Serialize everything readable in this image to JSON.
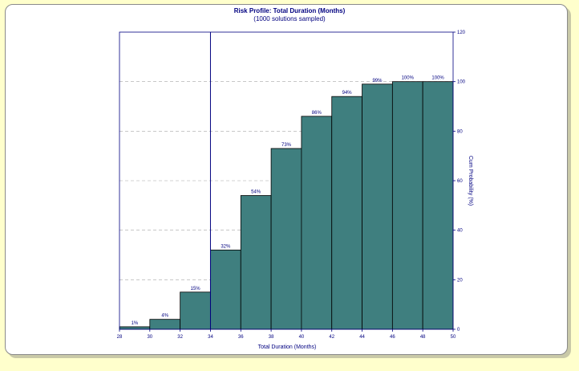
{
  "chart_data": {
    "type": "bar",
    "title": "Risk Profile:  Total Duration (Months)",
    "subtitle": "(1000 solutions sampled)",
    "xlabel": "Total Duration (Months)",
    "ylabel": "Cum Probability (%)",
    "x_ticks": [
      "28",
      "30",
      "32",
      "34",
      "36",
      "38",
      "40",
      "42",
      "44",
      "46",
      "48",
      "50"
    ],
    "y_ticks": [
      "0",
      "20",
      "40",
      "60",
      "80",
      "100",
      "120"
    ],
    "xlim": [
      28,
      50
    ],
    "ylim": [
      0,
      120
    ],
    "bin_edges": [
      28,
      30,
      32,
      34,
      36,
      38,
      40,
      42,
      44,
      46,
      48,
      50
    ],
    "values": [
      1,
      4,
      15,
      32,
      54,
      73,
      86,
      94,
      99,
      100,
      100
    ],
    "data_labels": [
      "1%",
      "4%",
      "15%",
      "32%",
      "54%",
      "73%",
      "86%",
      "94%",
      "99%",
      "100%",
      "100%"
    ],
    "marker_line_x": 34,
    "grid": "horizontal dashed",
    "bar_color": "#3f7f7f",
    "axis_color": "#000080"
  }
}
